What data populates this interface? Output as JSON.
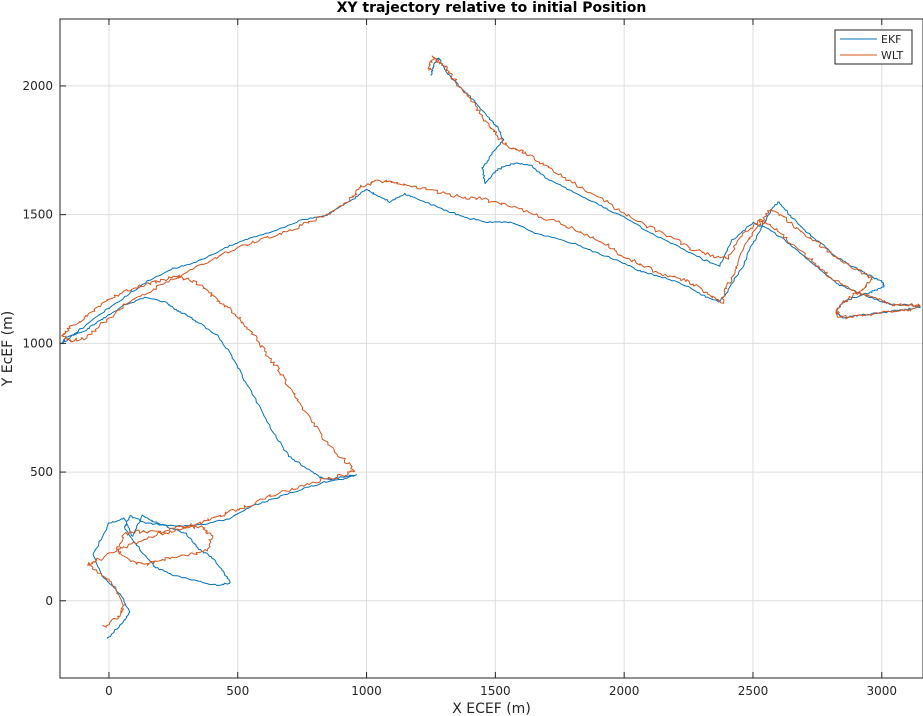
{
  "chart_data": {
    "type": "line",
    "title": "XY trajectory relative to initial Position",
    "xlabel": "X ECEF (m)",
    "ylabel": "Y EcEF (m)",
    "xlim": [
      -190,
      3160
    ],
    "ylim": [
      -300,
      2260
    ],
    "xticks": [
      0,
      500,
      1000,
      1500,
      2000,
      2500,
      3000
    ],
    "yticks": [
      0,
      500,
      1000,
      1500,
      2000
    ],
    "grid": true,
    "legend_position": "top-right",
    "series": [
      {
        "name": "EKF",
        "color": "#0072BD",
        "points": [
          [
            -10,
            -150
          ],
          [
            60,
            -80
          ],
          [
            80,
            -40
          ],
          [
            40,
            30
          ],
          [
            -30,
            100
          ],
          [
            -60,
            180
          ],
          [
            0,
            300
          ],
          [
            60,
            320
          ],
          [
            90,
            250
          ],
          [
            130,
            330
          ],
          [
            170,
            310
          ],
          [
            220,
            290
          ],
          [
            300,
            260
          ],
          [
            350,
            200
          ],
          [
            400,
            170
          ],
          [
            440,
            120
          ],
          [
            470,
            70
          ],
          [
            420,
            60
          ],
          [
            330,
            80
          ],
          [
            250,
            100
          ],
          [
            180,
            130
          ],
          [
            120,
            200
          ],
          [
            60,
            280
          ],
          [
            80,
            330
          ],
          [
            150,
            300
          ],
          [
            260,
            290
          ],
          [
            380,
            300
          ],
          [
            470,
            320
          ],
          [
            560,
            370
          ],
          [
            650,
            400
          ],
          [
            740,
            430
          ],
          [
            830,
            460
          ],
          [
            900,
            470
          ],
          [
            960,
            490
          ],
          [
            900,
            480
          ],
          [
            860,
            470
          ],
          [
            820,
            480
          ],
          [
            760,
            520
          ],
          [
            700,
            560
          ],
          [
            640,
            650
          ],
          [
            580,
            760
          ],
          [
            520,
            870
          ],
          [
            470,
            960
          ],
          [
            420,
            1030
          ],
          [
            350,
            1080
          ],
          [
            300,
            1110
          ],
          [
            260,
            1130
          ],
          [
            220,
            1160
          ],
          [
            150,
            1180
          ],
          [
            60,
            1150
          ],
          [
            0,
            1110
          ],
          [
            -50,
            1080
          ],
          [
            -90,
            1050
          ],
          [
            -170,
            1020
          ],
          [
            -180,
            1000
          ],
          [
            -130,
            1040
          ],
          [
            -40,
            1110
          ],
          [
            60,
            1180
          ],
          [
            150,
            1240
          ],
          [
            250,
            1290
          ],
          [
            350,
            1320
          ],
          [
            450,
            1370
          ],
          [
            550,
            1410
          ],
          [
            650,
            1440
          ],
          [
            750,
            1480
          ],
          [
            850,
            1500
          ],
          [
            950,
            1560
          ],
          [
            1000,
            1600
          ],
          [
            1030,
            1580
          ],
          [
            1090,
            1550
          ],
          [
            1150,
            1580
          ],
          [
            1200,
            1560
          ],
          [
            1300,
            1520
          ],
          [
            1380,
            1490
          ],
          [
            1470,
            1470
          ],
          [
            1560,
            1470
          ],
          [
            1680,
            1420
          ],
          [
            1800,
            1390
          ],
          [
            1900,
            1350
          ],
          [
            1980,
            1320
          ],
          [
            2060,
            1280
          ],
          [
            2140,
            1260
          ],
          [
            2230,
            1230
          ],
          [
            2320,
            1180
          ],
          [
            2370,
            1160
          ],
          [
            2400,
            1200
          ],
          [
            2460,
            1300
          ],
          [
            2500,
            1390
          ],
          [
            2540,
            1460
          ],
          [
            2570,
            1520
          ],
          [
            2600,
            1550
          ],
          [
            2650,
            1490
          ],
          [
            2700,
            1440
          ],
          [
            2760,
            1390
          ],
          [
            2830,
            1330
          ],
          [
            2900,
            1290
          ],
          [
            2960,
            1260
          ],
          [
            3000,
            1240
          ],
          [
            3010,
            1220
          ],
          [
            2960,
            1200
          ],
          [
            2900,
            1180
          ],
          [
            2850,
            1160
          ],
          [
            2820,
            1120
          ],
          [
            2850,
            1100
          ],
          [
            2920,
            1110
          ],
          [
            3000,
            1120
          ],
          [
            3080,
            1130
          ],
          [
            3150,
            1140
          ],
          [
            3110,
            1150
          ],
          [
            3040,
            1150
          ],
          [
            2980,
            1170
          ],
          [
            2900,
            1200
          ],
          [
            2830,
            1230
          ],
          [
            2780,
            1270
          ],
          [
            2720,
            1320
          ],
          [
            2650,
            1380
          ],
          [
            2570,
            1440
          ],
          [
            2500,
            1470
          ],
          [
            2420,
            1400
          ],
          [
            2370,
            1300
          ],
          [
            2300,
            1330
          ],
          [
            2200,
            1380
          ],
          [
            2100,
            1430
          ],
          [
            2000,
            1490
          ],
          [
            1900,
            1540
          ],
          [
            1800,
            1590
          ],
          [
            1700,
            1640
          ],
          [
            1640,
            1690
          ],
          [
            1580,
            1700
          ],
          [
            1540,
            1690
          ],
          [
            1500,
            1670
          ],
          [
            1460,
            1620
          ],
          [
            1450,
            1680
          ],
          [
            1490,
            1740
          ],
          [
            1530,
            1790
          ],
          [
            1510,
            1840
          ],
          [
            1480,
            1870
          ],
          [
            1420,
            1940
          ],
          [
            1370,
            1990
          ],
          [
            1330,
            2030
          ],
          [
            1300,
            2070
          ],
          [
            1280,
            2110
          ],
          [
            1260,
            2080
          ],
          [
            1250,
            2040
          ]
        ]
      },
      {
        "name": "WLT",
        "color": "#D95319",
        "points": [
          [
            -20,
            -100
          ],
          [
            40,
            -60
          ],
          [
            60,
            -20
          ],
          [
            20,
            60
          ],
          [
            -40,
            110
          ],
          [
            -80,
            140
          ],
          [
            -40,
            160
          ],
          [
            40,
            200
          ],
          [
            110,
            230
          ],
          [
            200,
            260
          ],
          [
            290,
            280
          ],
          [
            360,
            290
          ],
          [
            400,
            250
          ],
          [
            380,
            200
          ],
          [
            320,
            180
          ],
          [
            250,
            170
          ],
          [
            180,
            150
          ],
          [
            130,
            140
          ],
          [
            70,
            160
          ],
          [
            30,
            200
          ],
          [
            60,
            260
          ],
          [
            130,
            270
          ],
          [
            220,
            270
          ],
          [
            300,
            290
          ],
          [
            380,
            310
          ],
          [
            450,
            340
          ],
          [
            540,
            370
          ],
          [
            630,
            410
          ],
          [
            730,
            440
          ],
          [
            830,
            470
          ],
          [
            920,
            490
          ],
          [
            950,
            510
          ],
          [
            900,
            560
          ],
          [
            840,
            620
          ],
          [
            780,
            710
          ],
          [
            720,
            800
          ],
          [
            670,
            880
          ],
          [
            620,
            950
          ],
          [
            570,
            1020
          ],
          [
            520,
            1080
          ],
          [
            470,
            1130
          ],
          [
            430,
            1160
          ],
          [
            390,
            1200
          ],
          [
            330,
            1240
          ],
          [
            260,
            1260
          ],
          [
            180,
            1240
          ],
          [
            110,
            1220
          ],
          [
            40,
            1190
          ],
          [
            -30,
            1150
          ],
          [
            -90,
            1100
          ],
          [
            -150,
            1060
          ],
          [
            -180,
            1030
          ],
          [
            -150,
            1010
          ],
          [
            -90,
            1020
          ],
          [
            -20,
            1080
          ],
          [
            60,
            1150
          ],
          [
            150,
            1200
          ],
          [
            250,
            1250
          ],
          [
            350,
            1300
          ],
          [
            450,
            1350
          ],
          [
            550,
            1390
          ],
          [
            650,
            1420
          ],
          [
            750,
            1460
          ],
          [
            850,
            1500
          ],
          [
            940,
            1560
          ],
          [
            980,
            1610
          ],
          [
            1040,
            1630
          ],
          [
            1100,
            1630
          ],
          [
            1180,
            1610
          ],
          [
            1260,
            1590
          ],
          [
            1360,
            1570
          ],
          [
            1460,
            1560
          ],
          [
            1560,
            1530
          ],
          [
            1660,
            1500
          ],
          [
            1770,
            1460
          ],
          [
            1860,
            1420
          ],
          [
            1940,
            1380
          ],
          [
            2000,
            1330
          ],
          [
            2060,
            1310
          ],
          [
            2140,
            1270
          ],
          [
            2220,
            1250
          ],
          [
            2290,
            1220
          ],
          [
            2340,
            1180
          ],
          [
            2380,
            1160
          ],
          [
            2400,
            1220
          ],
          [
            2440,
            1310
          ],
          [
            2480,
            1400
          ],
          [
            2530,
            1470
          ],
          [
            2570,
            1520
          ],
          [
            2620,
            1490
          ],
          [
            2680,
            1440
          ],
          [
            2740,
            1400
          ],
          [
            2800,
            1350
          ],
          [
            2860,
            1310
          ],
          [
            2920,
            1280
          ],
          [
            2960,
            1250
          ],
          [
            2930,
            1210
          ],
          [
            2880,
            1180
          ],
          [
            2840,
            1150
          ],
          [
            2820,
            1110
          ],
          [
            2870,
            1100
          ],
          [
            2940,
            1110
          ],
          [
            3020,
            1120
          ],
          [
            3100,
            1130
          ],
          [
            3150,
            1145
          ],
          [
            3110,
            1150
          ],
          [
            3050,
            1150
          ],
          [
            2990,
            1170
          ],
          [
            2920,
            1190
          ],
          [
            2860,
            1220
          ],
          [
            2800,
            1260
          ],
          [
            2740,
            1310
          ],
          [
            2670,
            1370
          ],
          [
            2600,
            1430
          ],
          [
            2530,
            1480
          ],
          [
            2460,
            1420
          ],
          [
            2400,
            1330
          ],
          [
            2340,
            1340
          ],
          [
            2260,
            1370
          ],
          [
            2170,
            1420
          ],
          [
            2060,
            1470
          ],
          [
            1960,
            1530
          ],
          [
            1860,
            1590
          ],
          [
            1760,
            1650
          ],
          [
            1680,
            1700
          ],
          [
            1620,
            1740
          ],
          [
            1560,
            1760
          ],
          [
            1520,
            1790
          ],
          [
            1480,
            1840
          ],
          [
            1440,
            1900
          ],
          [
            1400,
            1950
          ],
          [
            1360,
            2000
          ],
          [
            1320,
            2050
          ],
          [
            1290,
            2090
          ],
          [
            1260,
            2110
          ],
          [
            1240,
            2060
          ]
        ]
      }
    ]
  }
}
